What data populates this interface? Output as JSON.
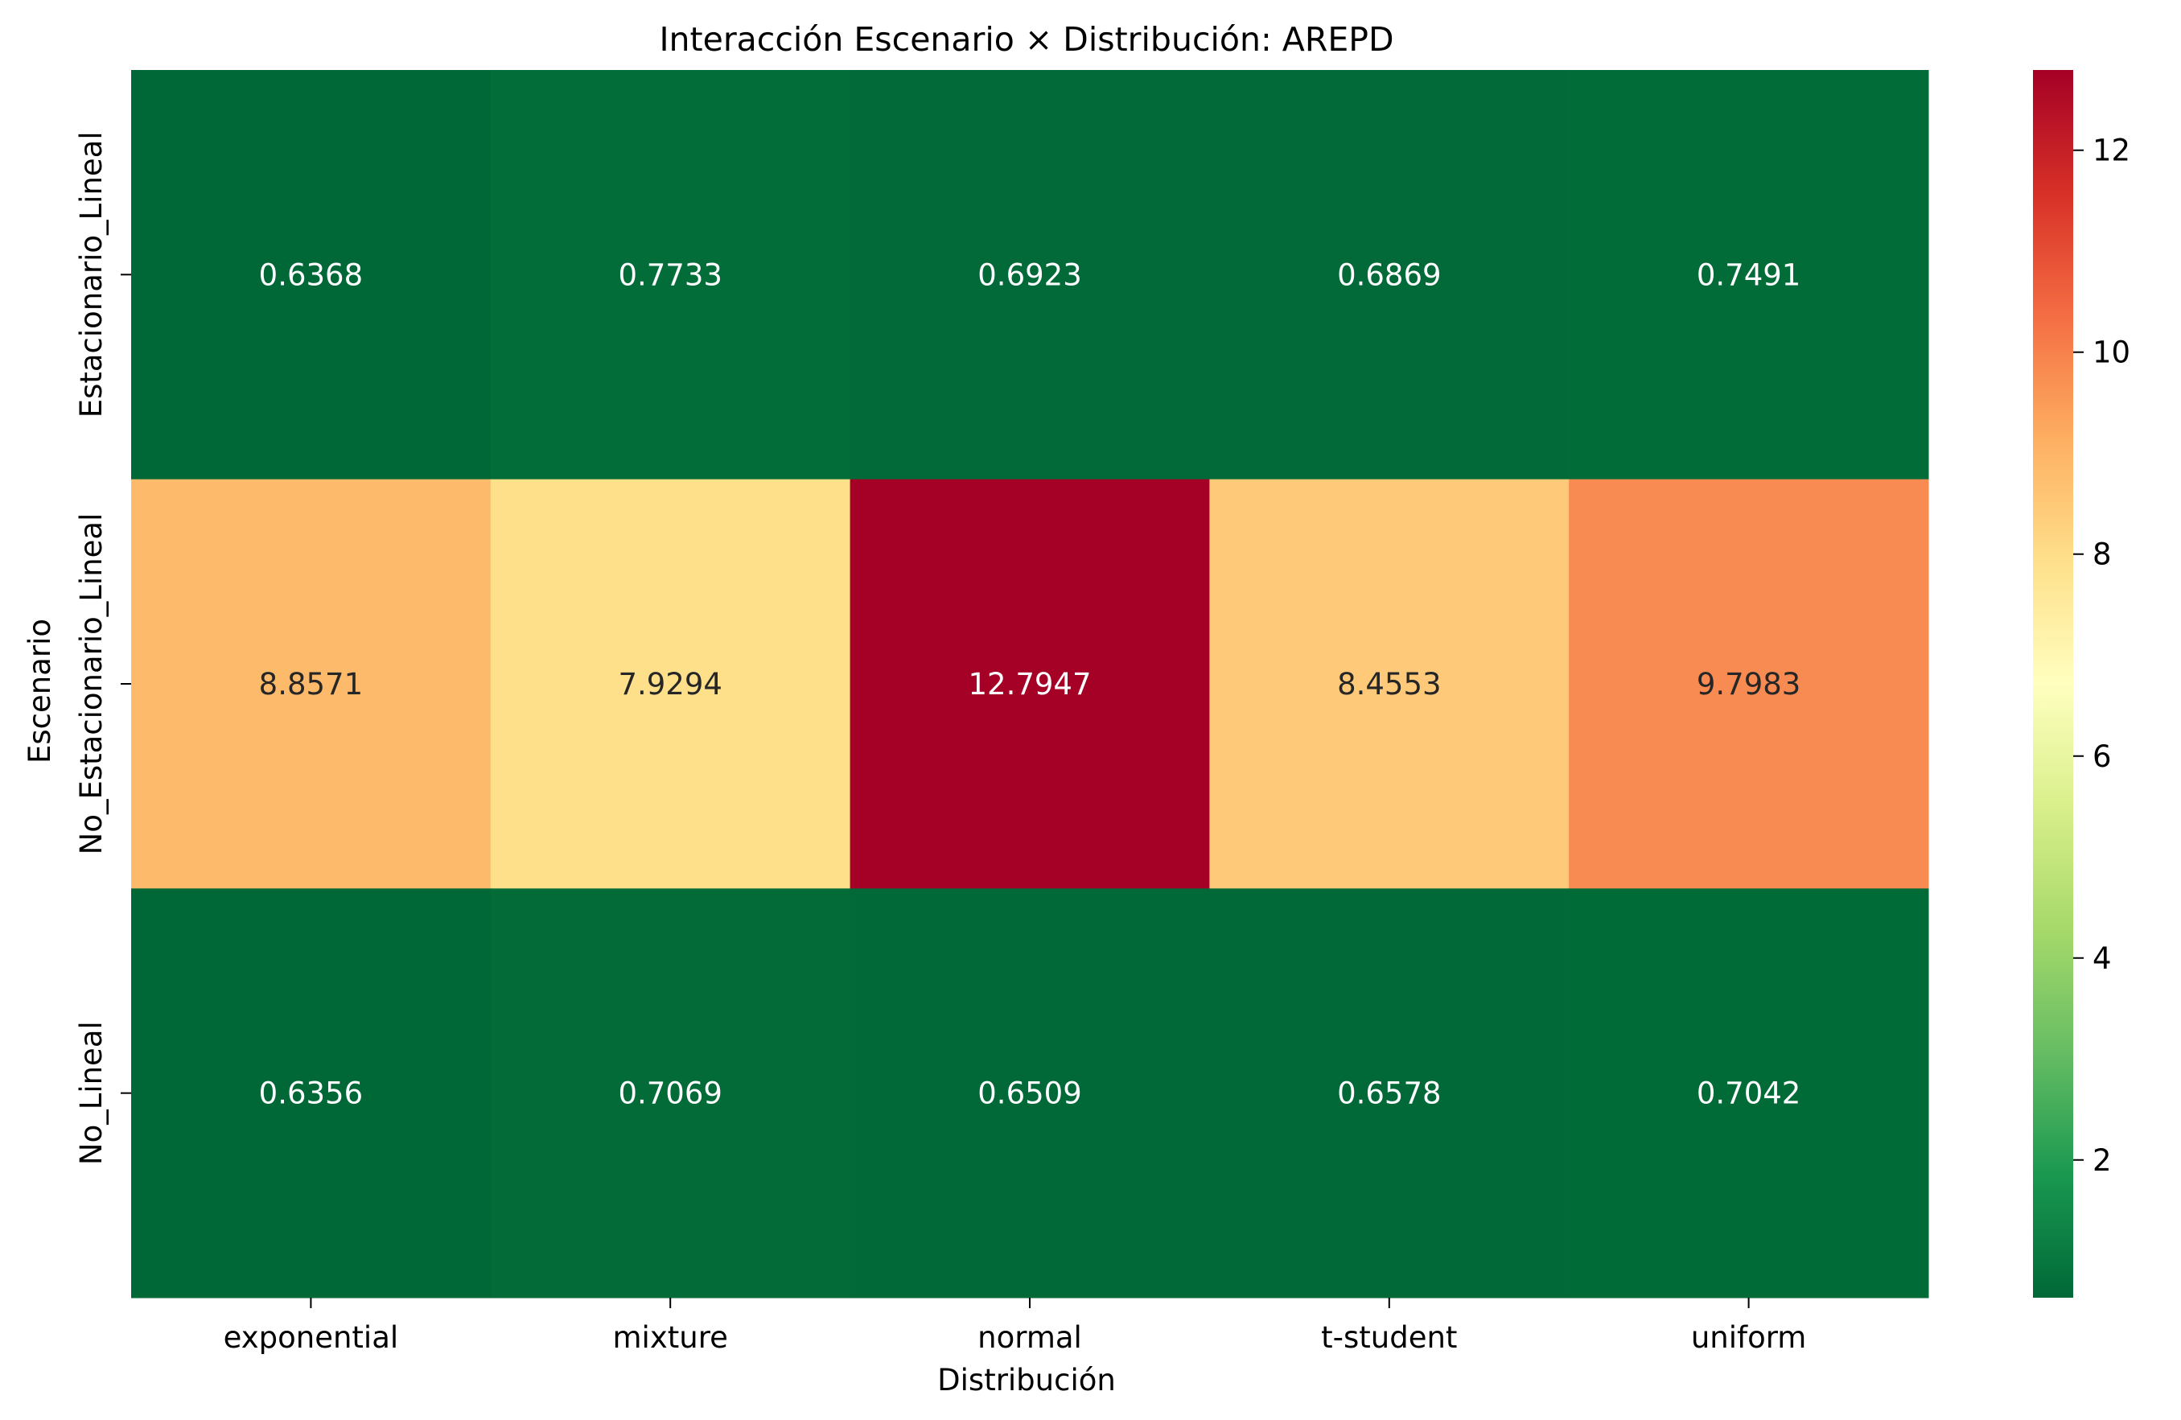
{
  "chart_data": {
    "type": "heatmap",
    "title": "Interacción Escenario × Distribución: AREPD",
    "xlabel": "Distribución",
    "ylabel": "Escenario",
    "x_categories": [
      "exponential",
      "mixture",
      "normal",
      "t-student",
      "uniform"
    ],
    "y_categories": [
      "Estacionario_Lineal",
      "No_Estacionario_Lineal",
      "No_Lineal"
    ],
    "values": [
      [
        0.6368,
        0.7733,
        0.6923,
        0.6869,
        0.7491
      ],
      [
        8.8571,
        7.9294,
        12.7947,
        8.4553,
        9.7983
      ],
      [
        0.6356,
        0.7069,
        0.6509,
        0.6578,
        0.7042
      ]
    ],
    "value_labels": [
      [
        "0.6368",
        "0.7733",
        "0.6923",
        "0.6869",
        "0.7491"
      ],
      [
        "8.8571",
        "7.9294",
        "12.7947",
        "8.4553",
        "9.7983"
      ],
      [
        "0.6356",
        "0.7069",
        "0.6509",
        "0.6578",
        "0.7042"
      ]
    ],
    "colormap": "RdYlGn_r",
    "color_range": [
      0.6356,
      12.7947
    ],
    "colorbar_ticks": [
      2,
      4,
      6,
      8,
      10,
      12
    ],
    "colorbar_tick_labels": [
      "2",
      "4",
      "6",
      "8",
      "10",
      "12"
    ],
    "annotation_colors": {
      "dark": "#262626",
      "light": "#ffffff"
    },
    "grid": false,
    "legend": "colorbar-right"
  }
}
